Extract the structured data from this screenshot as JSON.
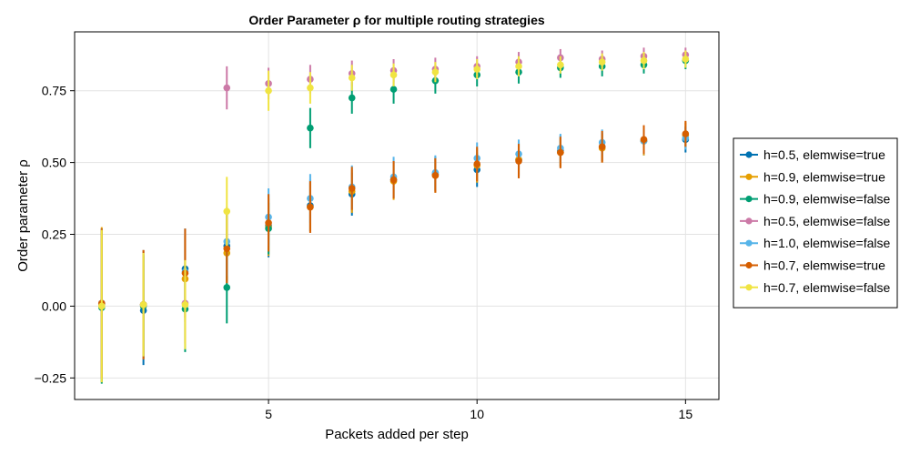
{
  "chart_data": {
    "type": "scatter",
    "title": "Order Parameter ρ for multiple routing strategies",
    "xlabel": "Packets added per step",
    "ylabel": "Order parameter ρ",
    "xlim": [
      0.35,
      15.8
    ],
    "ylim": [
      -0.325,
      0.955
    ],
    "x_ticks": [
      5,
      10,
      15
    ],
    "x_tick_labels": [
      "5",
      "10",
      "15"
    ],
    "y_ticks": [
      -0.25,
      0,
      0.25,
      0.5,
      0.75
    ],
    "y_tick_labels": [
      "−0.25",
      "0.00",
      "0.25",
      "0.50",
      "0.75"
    ],
    "grid": true,
    "legend_position": "right",
    "series": [
      {
        "name": "h=0.5, elemwise=true",
        "color": "#0072B2",
        "x": [
          1,
          2,
          3,
          4,
          5,
          6,
          7,
          8,
          9,
          10,
          11,
          12,
          13,
          14,
          15
        ],
        "y": [
          0.01,
          -0.015,
          0.13,
          0.21,
          0.28,
          0.35,
          0.39,
          0.44,
          0.46,
          0.475,
          0.51,
          0.54,
          0.555,
          0.575,
          0.58
        ],
        "err": [
          0.26,
          0.19,
          0.14,
          0.12,
          0.11,
          0.09,
          0.075,
          0.065,
          0.06,
          0.06,
          0.06,
          0.055,
          0.05,
          0.05,
          0.045
        ]
      },
      {
        "name": "h=0.9, elemwise=true",
        "color": "#E69F00",
        "x": [
          1,
          2,
          3,
          4,
          5,
          6,
          7,
          8,
          9,
          10,
          11,
          12,
          13,
          14,
          15
        ],
        "y": [
          0.005,
          0.005,
          0.095,
          0.185,
          0.275,
          0.345,
          0.4,
          0.435,
          0.455,
          0.49,
          0.51,
          0.535,
          0.55,
          0.575,
          0.595
        ],
        "err": [
          0.27,
          0.19,
          0.15,
          0.12,
          0.1,
          0.085,
          0.075,
          0.065,
          0.06,
          0.06,
          0.055,
          0.05,
          0.05,
          0.05,
          0.045
        ]
      },
      {
        "name": "h=0.9, elemwise=false",
        "color": "#009E73",
        "x": [
          1,
          2,
          3,
          4,
          5,
          6,
          7,
          8,
          9,
          10,
          11,
          12,
          13,
          14,
          15
        ],
        "y": [
          -0.005,
          0,
          -0.01,
          0.065,
          0.27,
          0.62,
          0.725,
          0.755,
          0.785,
          0.805,
          0.815,
          0.83,
          0.835,
          0.84,
          0.855
        ],
        "err": [
          0.265,
          0.18,
          0.15,
          0.125,
          0.09,
          0.07,
          0.055,
          0.05,
          0.045,
          0.04,
          0.04,
          0.035,
          0.035,
          0.03,
          0.03
        ]
      },
      {
        "name": "h=0.5, elemwise=false",
        "color": "#CC79A7",
        "x": [
          1,
          2,
          3,
          4,
          5,
          6,
          7,
          8,
          9,
          10,
          11,
          12,
          13,
          14,
          15
        ],
        "y": [
          0.01,
          0.005,
          0.01,
          0.76,
          0.775,
          0.79,
          0.81,
          0.82,
          0.825,
          0.835,
          0.85,
          0.865,
          0.86,
          0.87,
          0.875
        ],
        "err": [
          0.26,
          0.19,
          0.14,
          0.075,
          0.055,
          0.05,
          0.045,
          0.04,
          0.04,
          0.035,
          0.035,
          0.03,
          0.03,
          0.03,
          0.025
        ]
      },
      {
        "name": "h=1.0, elemwise=false",
        "color": "#56B4E9",
        "x": [
          1,
          2,
          3,
          4,
          5,
          6,
          7,
          8,
          9,
          10,
          11,
          12,
          13,
          14,
          15
        ],
        "y": [
          0.01,
          0.005,
          0.12,
          0.225,
          0.31,
          0.375,
          0.415,
          0.45,
          0.465,
          0.515,
          0.53,
          0.55,
          0.57,
          0.575,
          0.585
        ],
        "err": [
          0.26,
          0.19,
          0.15,
          0.12,
          0.1,
          0.085,
          0.075,
          0.07,
          0.06,
          0.055,
          0.05,
          0.05,
          0.045,
          0.045,
          0.04
        ]
      },
      {
        "name": "h=0.7, elemwise=true",
        "color": "#D55E00",
        "x": [
          1,
          2,
          3,
          4,
          5,
          6,
          7,
          8,
          9,
          10,
          11,
          12,
          13,
          14,
          15
        ],
        "y": [
          0.01,
          0.005,
          0.115,
          0.2,
          0.29,
          0.345,
          0.41,
          0.44,
          0.455,
          0.495,
          0.505,
          0.535,
          0.555,
          0.58,
          0.6
        ],
        "err": [
          0.26,
          0.19,
          0.155,
          0.12,
          0.1,
          0.09,
          0.075,
          0.065,
          0.06,
          0.06,
          0.06,
          0.055,
          0.055,
          0.05,
          0.045
        ]
      },
      {
        "name": "h=0.7, elemwise=false",
        "color": "#F0E442",
        "x": [
          1,
          2,
          3,
          4,
          5,
          6,
          7,
          8,
          9,
          10,
          11,
          12,
          13,
          14,
          15
        ],
        "y": [
          0,
          0.005,
          0.005,
          0.33,
          0.75,
          0.76,
          0.795,
          0.805,
          0.815,
          0.825,
          0.835,
          0.84,
          0.85,
          0.855,
          0.86
        ],
        "err": [
          0.265,
          0.18,
          0.155,
          0.12,
          0.07,
          0.055,
          0.045,
          0.04,
          0.035,
          0.035,
          0.035,
          0.03,
          0.03,
          0.03,
          0.03
        ]
      }
    ]
  }
}
